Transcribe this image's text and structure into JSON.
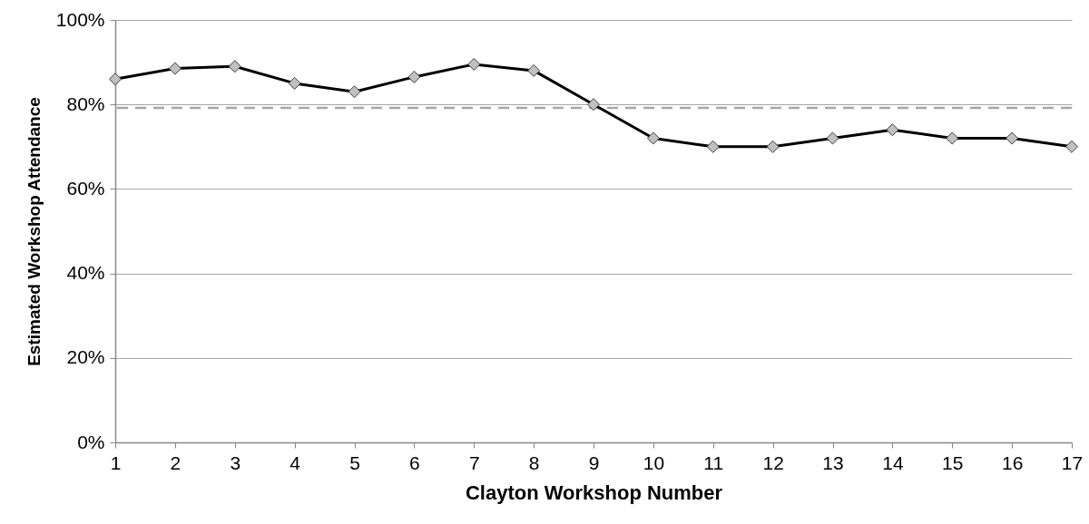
{
  "chart_data": {
    "type": "line",
    "xlabel": "Clayton Workshop Number",
    "ylabel": "Estimated Workshop Attendance",
    "x": [
      1,
      2,
      3,
      4,
      5,
      6,
      7,
      8,
      9,
      10,
      11,
      12,
      13,
      14,
      15,
      16,
      17
    ],
    "series": [
      {
        "color": "#000000",
        "values": [
          86,
          88.5,
          89,
          85,
          83,
          86.5,
          89.5,
          88,
          80,
          72,
          70,
          70,
          72,
          74,
          72,
          72,
          70
        ]
      }
    ],
    "xlim": [
      1,
      17
    ],
    "xticks": [
      1,
      2,
      3,
      4,
      5,
      6,
      7,
      8,
      9,
      10,
      11,
      12,
      13,
      14,
      15,
      16,
      17
    ],
    "ylim": [
      0,
      100
    ],
    "yticks": [
      {
        "value": 0,
        "label": "0%"
      },
      {
        "value": 20,
        "label": "20%"
      },
      {
        "value": 40,
        "label": "40%"
      },
      {
        "value": 60,
        "label": "60%"
      },
      {
        "value": 80,
        "label": "80%"
      },
      {
        "value": 100,
        "label": "100%"
      }
    ],
    "ref_lines": [
      {
        "axis": "y",
        "value": 79.2,
        "color": "#a6a6a6",
        "line_style": "dashed"
      }
    ],
    "grid": "y",
    "marker": "diamond",
    "line_style": "solid"
  }
}
